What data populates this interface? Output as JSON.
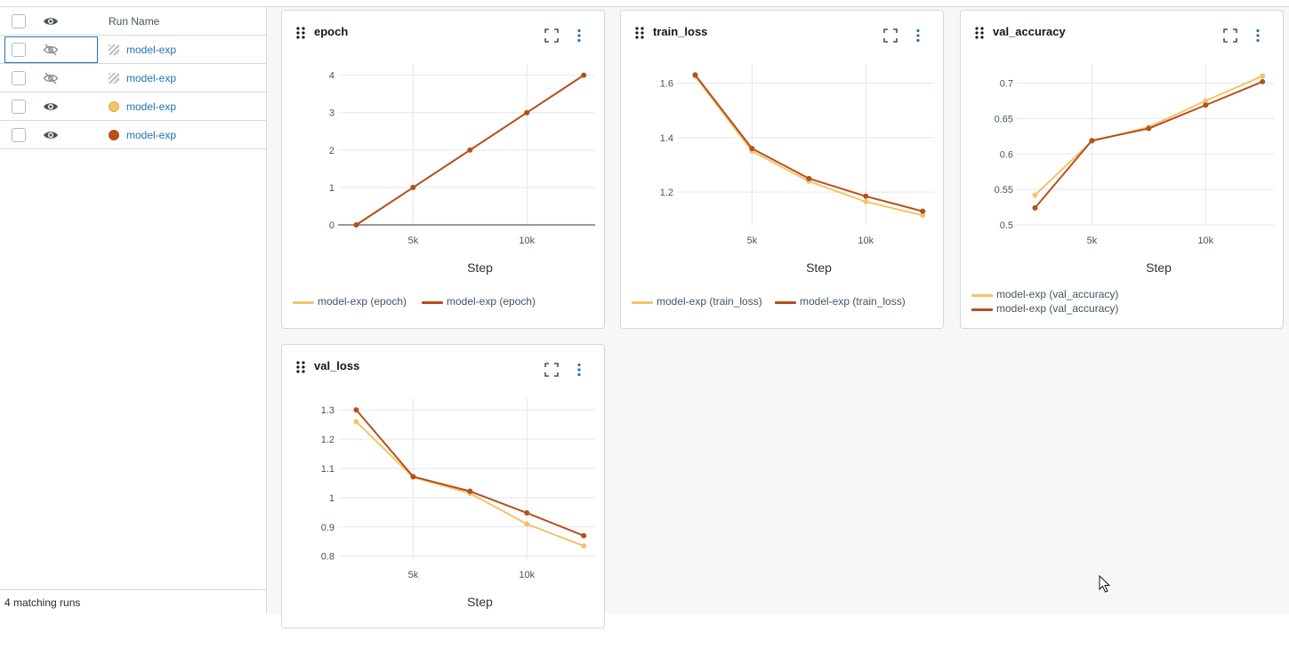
{
  "runs_table": {
    "header": {
      "name_label": "Run Name"
    },
    "rows": [
      {
        "name": "model-exp",
        "visibility": "eye-off-icon",
        "swatch": "hatched",
        "color": ""
      },
      {
        "name": "model-exp",
        "visibility": "eye-off-icon",
        "swatch": "hatched",
        "color": ""
      },
      {
        "name": "model-exp",
        "visibility": "eye-icon",
        "swatch": "dot",
        "color": "#f2c46a"
      },
      {
        "name": "model-exp",
        "visibility": "eye-icon",
        "swatch": "dot",
        "color": "#b5501c"
      }
    ],
    "footer": "4 matching runs"
  },
  "colors": {
    "series_light": "#f2c46a",
    "series_dark": "#b5501c",
    "link": "#2272b4"
  },
  "charts": [
    {
      "title": "epoch",
      "legend": [
        "model-exp (epoch)",
        "model-exp (epoch)"
      ]
    },
    {
      "title": "train_loss",
      "legend": [
        "model-exp (train_loss)",
        "model-exp (train_loss)"
      ]
    },
    {
      "title": "val_accuracy",
      "legend": [
        "model-exp (val_accuracy)",
        "model-exp (val_accuracy)"
      ]
    },
    {
      "title": "val_loss",
      "legend": []
    }
  ],
  "chart_data": [
    {
      "type": "line",
      "title": "epoch",
      "xlabel": "Step",
      "ylabel": "",
      "xlim": [
        1700,
        13000
      ],
      "ylim": [
        0,
        4.3
      ],
      "x_ticks": [
        5000,
        10000
      ],
      "x_tick_labels": [
        "5k",
        "10k"
      ],
      "y_ticks": [
        0,
        1,
        2,
        3,
        4
      ],
      "y_tick_labels": [
        "0",
        "1",
        "2",
        "3",
        "4"
      ],
      "zero_line": true,
      "grid": true,
      "legend": "bottom",
      "series": [
        {
          "name": "model-exp (epoch)",
          "color": "#f2c46a",
          "x": [
            2500,
            5000,
            7500,
            10000,
            12500
          ],
          "y": [
            0,
            1,
            2,
            3,
            4
          ]
        },
        {
          "name": "model-exp (epoch)",
          "color": "#b5501c",
          "x": [
            2500,
            5000,
            7500,
            10000,
            12500
          ],
          "y": [
            0,
            1,
            2,
            3,
            4
          ]
        }
      ]
    },
    {
      "type": "line",
      "title": "train_loss",
      "xlabel": "Step",
      "ylabel": "",
      "xlim": [
        1700,
        13000
      ],
      "ylim": [
        1.08,
        1.67
      ],
      "x_ticks": [
        5000,
        10000
      ],
      "x_tick_labels": [
        "5k",
        "10k"
      ],
      "y_ticks": [
        1.2,
        1.4,
        1.6
      ],
      "y_tick_labels": [
        "1.2",
        "1.4",
        "1.6"
      ],
      "grid": true,
      "legend": "bottom",
      "series": [
        {
          "name": "model-exp (train_loss)",
          "color": "#f2c46a",
          "x": [
            2500,
            5000,
            7500,
            10000,
            12500
          ],
          "y": [
            1.625,
            1.35,
            1.24,
            1.165,
            1.115
          ]
        },
        {
          "name": "model-exp (train_loss)",
          "color": "#b5501c",
          "x": [
            2500,
            5000,
            7500,
            10000,
            12500
          ],
          "y": [
            1.63,
            1.36,
            1.25,
            1.185,
            1.13
          ]
        }
      ]
    },
    {
      "type": "line",
      "title": "val_accuracy",
      "xlabel": "Step",
      "ylabel": "",
      "xlim": [
        1700,
        13000
      ],
      "ylim": [
        0.5,
        0.727
      ],
      "x_ticks": [
        5000,
        10000
      ],
      "x_tick_labels": [
        "5k",
        "10k"
      ],
      "y_ticks": [
        0.5,
        0.55,
        0.6,
        0.65,
        0.7
      ],
      "y_tick_labels": [
        "0.5",
        "0.55",
        "0.6",
        "0.65",
        "0.7"
      ],
      "grid": true,
      "legend": "bottom",
      "series": [
        {
          "name": "model-exp (val_accuracy)",
          "color": "#f2c46a",
          "x": [
            2500,
            5000,
            7500,
            10000,
            12500
          ],
          "y": [
            0.542,
            0.618,
            0.638,
            0.675,
            0.71
          ]
        },
        {
          "name": "model-exp (val_accuracy)",
          "color": "#b5501c",
          "x": [
            2500,
            5000,
            7500,
            10000,
            12500
          ],
          "y": [
            0.524,
            0.619,
            0.636,
            0.669,
            0.702
          ]
        }
      ]
    },
    {
      "type": "line",
      "title": "val_loss",
      "xlabel": "Step",
      "ylabel": "",
      "xlim": [
        1700,
        13000
      ],
      "ylim": [
        0.79,
        1.34
      ],
      "x_ticks": [
        5000,
        10000
      ],
      "x_tick_labels": [
        "5k",
        "10k"
      ],
      "y_ticks": [
        0.8,
        0.9,
        1.0,
        1.1,
        1.2,
        1.3
      ],
      "y_tick_labels": [
        "0.8",
        "0.9",
        "1",
        "1.1",
        "1.2",
        "1.3"
      ],
      "grid": true,
      "legend": "",
      "series": [
        {
          "name": "",
          "color": "#f2c46a",
          "x": [
            2500,
            5000,
            7500,
            10000,
            12500
          ],
          "y": [
            1.26,
            1.07,
            1.015,
            0.91,
            0.835
          ]
        },
        {
          "name": "",
          "color": "#b5501c",
          "x": [
            2500,
            5000,
            7500,
            10000,
            12500
          ],
          "y": [
            1.3,
            1.072,
            1.022,
            0.948,
            0.87
          ]
        }
      ]
    }
  ]
}
